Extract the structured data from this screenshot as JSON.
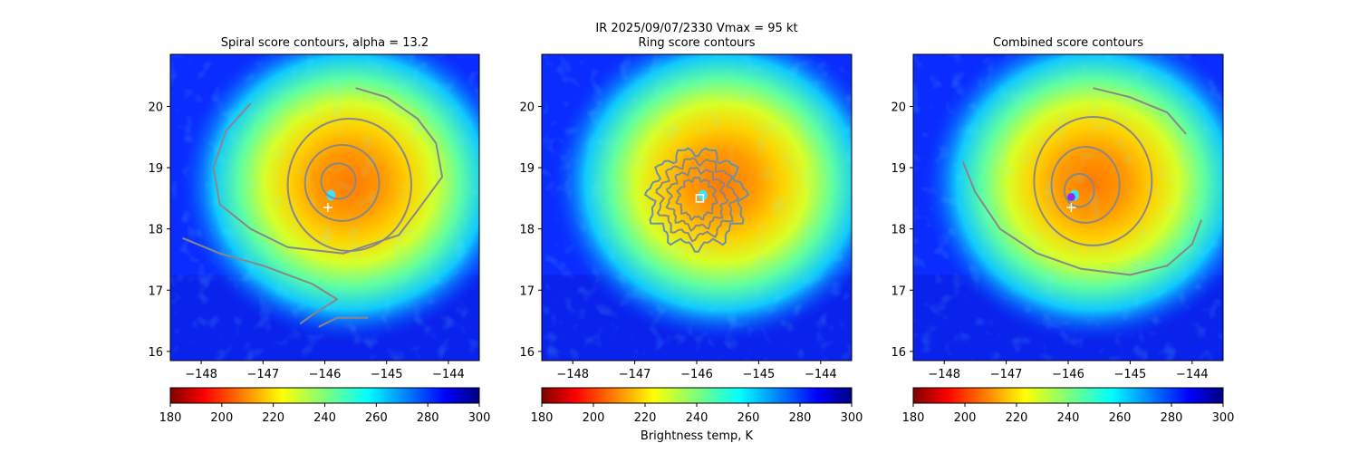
{
  "figure": {
    "suptitle_line1": "IR  2025/09/07/2330    Vmax = 95 kt",
    "colorbar_label": "Brightness temp, K"
  },
  "chart_data": [
    {
      "type": "heatmap",
      "title": "Spiral score contours, alpha = 13.2",
      "xlim": [
        -148.5,
        -143.5
      ],
      "ylim": [
        15.85,
        20.85
      ],
      "xticks": [
        -148,
        -147,
        -146,
        -145,
        -144
      ],
      "xtick_labels": [
        "−148",
        "−147",
        "−146",
        "−145",
        "−144"
      ],
      "yticks": [
        16,
        17,
        18,
        19,
        20
      ],
      "ytick_labels": [
        "16",
        "17",
        "18",
        "19",
        "20"
      ],
      "field": {
        "name": "Brightness temp",
        "colormap": "jet_r",
        "vmin": 180,
        "vmax": 300,
        "eye": [
          -145.9,
          18.55
        ],
        "cold_center": [
          -145.6,
          18.75
        ]
      },
      "contour_color": "#888888",
      "contours": [
        {
          "kind": "ellipse",
          "cx": -145.78,
          "cy": 18.78,
          "rx": 0.28,
          "ry": 0.29
        },
        {
          "kind": "ellipse",
          "cx": -145.72,
          "cy": 18.75,
          "rx": 0.6,
          "ry": 0.62
        },
        {
          "kind": "ellipse",
          "cx": -145.6,
          "cy": 18.72,
          "rx": 1.0,
          "ry": 1.08
        },
        {
          "kind": "path",
          "points": [
            [
              -145.5,
              20.3
            ],
            [
              -145.0,
              20.15
            ],
            [
              -144.5,
              19.8
            ],
            [
              -144.2,
              19.4
            ],
            [
              -144.1,
              18.85
            ],
            [
              -144.5,
              18.3
            ],
            [
              -144.8,
              17.9
            ],
            [
              -145.7,
              17.6
            ],
            [
              -146.6,
              17.7
            ],
            [
              -147.2,
              18.0
            ],
            [
              -147.7,
              18.4
            ],
            [
              -147.8,
              19.0
            ],
            [
              -147.6,
              19.6
            ],
            [
              -147.2,
              20.05
            ]
          ]
        },
        {
          "kind": "path",
          "points": [
            [
              -148.3,
              17.85
            ],
            [
              -147.7,
              17.6
            ],
            [
              -147.0,
              17.4
            ],
            [
              -146.2,
              17.1
            ],
            [
              -145.8,
              16.85
            ],
            [
              -146.2,
              16.6
            ],
            [
              -146.4,
              16.45
            ]
          ]
        },
        {
          "kind": "path",
          "points": [
            [
              -146.1,
              16.4
            ],
            [
              -145.8,
              16.55
            ],
            [
              -145.3,
              16.55
            ]
          ]
        }
      ],
      "markers": [
        {
          "symbol": "plus",
          "x": -145.95,
          "y": 18.35,
          "color": "#ffffff"
        }
      ],
      "colorbar": {
        "min": 180,
        "max": 300,
        "ticks": [
          180,
          200,
          220,
          240,
          260,
          280,
          300
        ]
      }
    },
    {
      "type": "heatmap",
      "title": "Ring score contours",
      "xlim": [
        -148.5,
        -143.5
      ],
      "ylim": [
        15.85,
        20.85
      ],
      "xticks": [
        -148,
        -147,
        -146,
        -145,
        -144
      ],
      "xtick_labels": [
        "−148",
        "−147",
        "−146",
        "−145",
        "−144"
      ],
      "yticks": [
        16,
        17,
        18,
        19,
        20
      ],
      "ytick_labels": [
        "16",
        "17",
        "18",
        "19",
        "20"
      ],
      "field": {
        "name": "Brightness temp",
        "colormap": "jet_r",
        "vmin": 180,
        "vmax": 300,
        "eye": [
          -145.9,
          18.55
        ],
        "cold_center": [
          -145.6,
          18.75
        ]
      },
      "contour_color": "#888888",
      "contours": [
        {
          "kind": "ellipse",
          "cx": -146.0,
          "cy": 18.5,
          "rx": 0.75,
          "ry": 0.78,
          "wobble": true
        },
        {
          "kind": "ellipse",
          "cx": -146.0,
          "cy": 18.5,
          "rx": 0.6,
          "ry": 0.62,
          "wobble": true
        },
        {
          "kind": "ellipse",
          "cx": -146.0,
          "cy": 18.5,
          "rx": 0.45,
          "ry": 0.47,
          "wobble": true
        },
        {
          "kind": "ellipse",
          "cx": -146.0,
          "cy": 18.5,
          "rx": 0.3,
          "ry": 0.32,
          "wobble": true
        }
      ],
      "markers": [
        {
          "symbol": "square",
          "x": -145.95,
          "y": 18.5,
          "color": "#ffffff"
        }
      ],
      "colorbar": {
        "min": 180,
        "max": 300,
        "ticks": [
          180,
          200,
          220,
          240,
          260,
          280,
          300
        ]
      }
    },
    {
      "type": "heatmap",
      "title": "Combined score contours",
      "xlim": [
        -148.5,
        -143.5
      ],
      "ylim": [
        15.85,
        20.85
      ],
      "xticks": [
        -148,
        -147,
        -146,
        -145,
        -144
      ],
      "xtick_labels": [
        "−148",
        "−147",
        "−146",
        "−145",
        "−144"
      ],
      "yticks": [
        16,
        17,
        18,
        19,
        20
      ],
      "ytick_labels": [
        "16",
        "17",
        "18",
        "19",
        "20"
      ],
      "field": {
        "name": "Brightness temp",
        "colormap": "jet_r",
        "vmin": 180,
        "vmax": 300,
        "eye": [
          -145.9,
          18.55
        ],
        "cold_center": [
          -145.6,
          18.75
        ]
      },
      "contour_color": "#888888",
      "contours": [
        {
          "kind": "ellipse",
          "cx": -145.82,
          "cy": 18.63,
          "rx": 0.24,
          "ry": 0.27
        },
        {
          "kind": "ellipse",
          "cx": -145.72,
          "cy": 18.72,
          "rx": 0.55,
          "ry": 0.62
        },
        {
          "kind": "ellipse",
          "cx": -145.6,
          "cy": 18.78,
          "rx": 0.95,
          "ry": 1.05
        },
        {
          "kind": "path",
          "points": [
            [
              -145.6,
              20.3
            ],
            [
              -145.0,
              20.15
            ],
            [
              -144.4,
              19.9
            ],
            [
              -144.1,
              19.55
            ]
          ]
        },
        {
          "kind": "path",
          "points": [
            [
              -147.7,
              19.1
            ],
            [
              -147.5,
              18.6
            ],
            [
              -147.1,
              18.0
            ],
            [
              -146.5,
              17.6
            ],
            [
              -145.8,
              17.35
            ],
            [
              -145.0,
              17.25
            ],
            [
              -144.4,
              17.4
            ],
            [
              -144.0,
              17.75
            ],
            [
              -143.85,
              18.15
            ]
          ]
        }
      ],
      "markers": [
        {
          "symbol": "plus",
          "x": -145.95,
          "y": 18.35,
          "color": "#ffffff"
        },
        {
          "symbol": "circle",
          "x": -145.95,
          "y": 18.52,
          "color": "#a020f0"
        }
      ],
      "colorbar": {
        "min": 180,
        "max": 300,
        "ticks": [
          180,
          200,
          220,
          240,
          260,
          280,
          300
        ]
      }
    }
  ]
}
